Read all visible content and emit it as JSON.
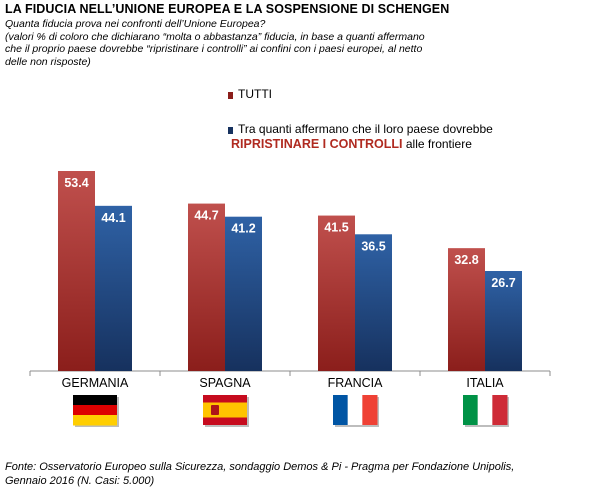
{
  "title": "LA FIDUCIA NELL’UNIONE EUROPEA E LA SOSPENSIONE DI SCHENGEN",
  "subtitle_line1": "Quanta fiducia prova nei confronti dell’Unione Europea?",
  "subtitle_line2": "(valori % di coloro che dichiarano “molta o abbastanza” fiducia, in base a quanti affermano che il proprio paese dovrebbe “ripristinare i controlli” ai confini con i paesi europei,  al netto delle non risposte)",
  "legend": {
    "series1_label": "TUTTI",
    "series2_text_line1": "Tra quanti affermano che il loro paese dovrebbe",
    "series2_emph": "RIPRISTINARE  I CONTROLLI",
    "series2_text_tail": " alle frontiere"
  },
  "source": "Fonte: Osservatorio Europeo sulla Sicurezza, sondaggio Demos & Pi -  Pragma per Fondazione Unipolis, Gennaio 2016 (N. Casi: 5.000)",
  "colors": {
    "series1_top": "#c0504d",
    "series1_bottom": "#8b1e1b",
    "series2_top": "#2f62a6",
    "series2_bottom": "#16315e",
    "emph_text": "#b02a20"
  },
  "flags": [
    {
      "country": "GERMANIA",
      "icon": "germany-flag",
      "colors": [
        "#000000",
        "#dd0000",
        "#ffce00"
      ],
      "orientation": "horizontal"
    },
    {
      "country": "SPAGNA",
      "icon": "spain-flag",
      "colors": [
        "#c60b1e",
        "#ffc400",
        "#c60b1e"
      ],
      "orientation": "horizontal-spain"
    },
    {
      "country": "FRANCIA",
      "icon": "france-flag",
      "colors": [
        "#0055a4",
        "#ffffff",
        "#ef4135"
      ],
      "orientation": "vertical"
    },
    {
      "country": "ITALIA",
      "icon": "italy-flag",
      "colors": [
        "#009246",
        "#ffffff",
        "#ce2b37"
      ],
      "orientation": "vertical"
    }
  ],
  "chart_data": {
    "type": "bar",
    "categories": [
      "GERMANIA",
      "SPAGNA",
      "FRANCIA",
      "ITALIA"
    ],
    "series": [
      {
        "name": "TUTTI",
        "values": [
          53.4,
          44.7,
          41.5,
          32.8
        ]
      },
      {
        "name": "Tra quanti affermano che il loro paese dovrebbe RIPRISTINARE I CONTROLLI alle frontiere",
        "values": [
          44.1,
          41.2,
          36.5,
          26.7
        ]
      }
    ],
    "data_labels": [
      [
        "53.4",
        "44.7",
        "41.5",
        "32.8"
      ],
      [
        "44.1",
        "41.2",
        "36.5",
        "26.7"
      ]
    ],
    "ylim": [
      0,
      60
    ],
    "grid": false,
    "legend_position": "top-right"
  }
}
